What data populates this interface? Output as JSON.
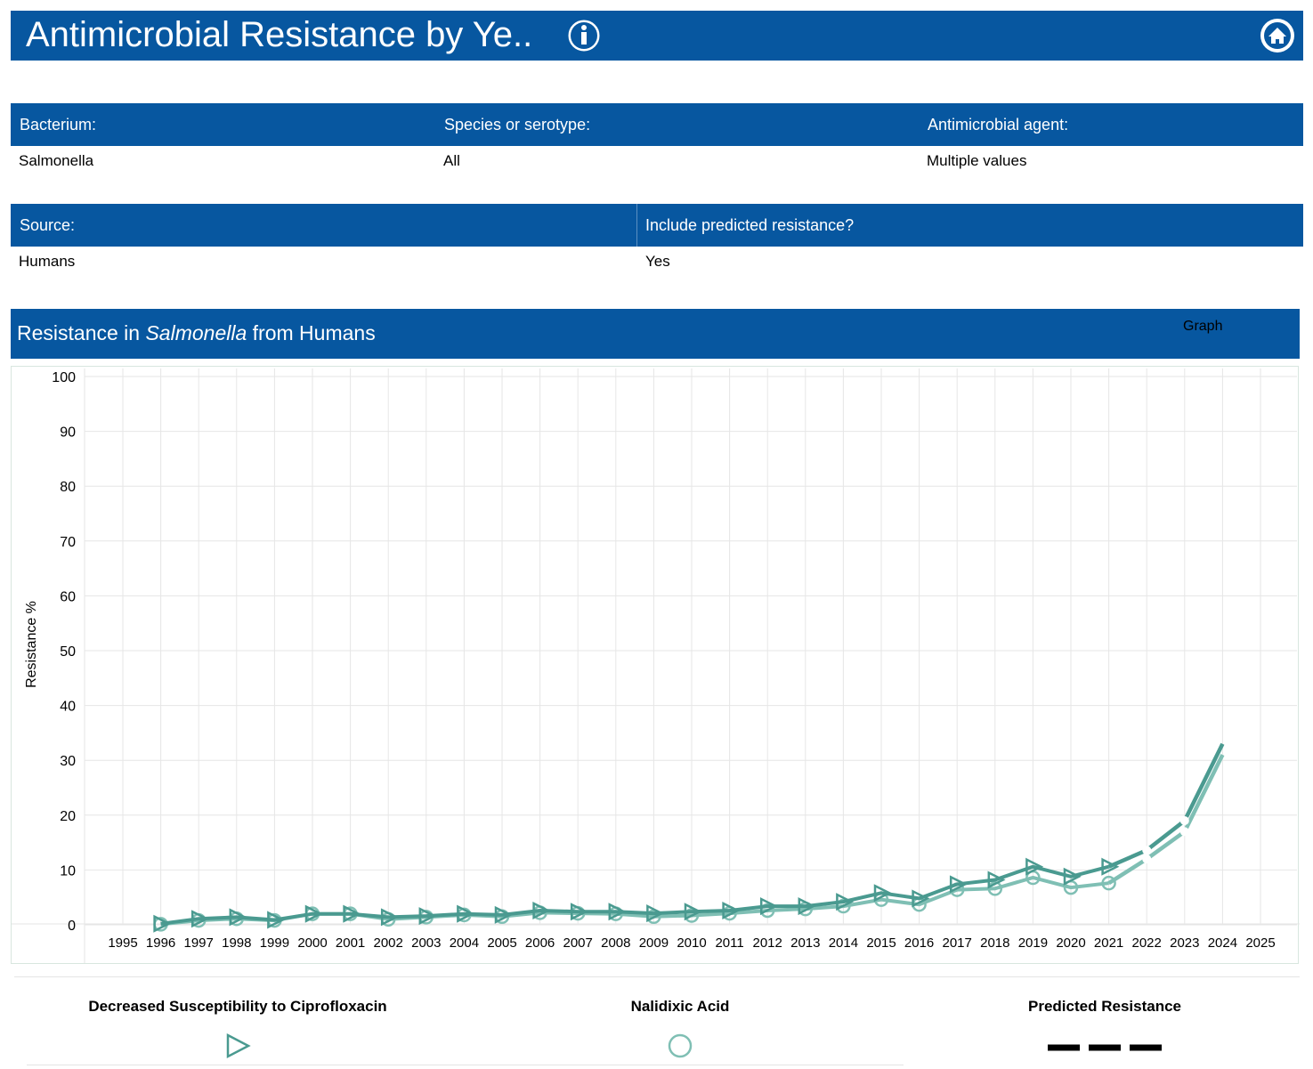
{
  "header": {
    "title": "Antimicrobial Resistance by Ye..",
    "info_icon": "info-icon",
    "home_icon": "home-icon",
    "bar_color": "#0757a0"
  },
  "filters": {
    "bacterium": {
      "label": "Bacterium:",
      "value": "Salmonella"
    },
    "species": {
      "label": "Species or serotype:",
      "value": "All"
    },
    "agent": {
      "label": "Antimicrobial agent:",
      "value": "Multiple values"
    },
    "source": {
      "label": "Source:",
      "value": "Humans"
    },
    "predicted": {
      "label": "Include predicted resistance?",
      "value": "Yes"
    }
  },
  "chart_panel": {
    "title_prefix": "Resistance in ",
    "title_italic": "Salmonella",
    "title_suffix": " from Humans",
    "graph_button": "Graph"
  },
  "legend": {
    "cipro": "Decreased Susceptibility to Ciprofloxacin",
    "nalidixic": "Nalidixic Acid",
    "predicted": "Predicted Resistance"
  },
  "chart_data": {
    "type": "line",
    "ylabel": "Resistance %",
    "xlabel": "",
    "ylim": [
      0,
      100
    ],
    "y_ticks": [
      0,
      10,
      20,
      30,
      40,
      50,
      60,
      70,
      80,
      90,
      100
    ],
    "x_ticks": [
      1995,
      1996,
      1997,
      1998,
      1999,
      2000,
      2001,
      2002,
      2003,
      2004,
      2005,
      2006,
      2007,
      2008,
      2009,
      2010,
      2011,
      2012,
      2013,
      2014,
      2015,
      2016,
      2017,
      2018,
      2019,
      2020,
      2021,
      2022,
      2023,
      2024,
      2025
    ],
    "grid": true,
    "series": [
      {
        "name": "Decreased Susceptibility to Ciprofloxacin",
        "color": "#4a9a90",
        "marker": "triangle",
        "x": [
          1996,
          1997,
          1998,
          1999,
          2000,
          2001,
          2002,
          2003,
          2004,
          2005,
          2006,
          2007,
          2008,
          2009,
          2010,
          2011,
          2012,
          2013,
          2014,
          2015,
          2016,
          2017,
          2018,
          2019,
          2020,
          2021
        ],
        "values": [
          0.2,
          1.1,
          1.4,
          0.9,
          2.0,
          2.0,
          1.4,
          1.6,
          2.0,
          1.8,
          2.6,
          2.4,
          2.4,
          2.1,
          2.4,
          2.6,
          3.4,
          3.4,
          4.2,
          5.8,
          4.8,
          7.4,
          8.2,
          10.6,
          8.8,
          10.6
        ]
      },
      {
        "name": "Nalidixic Acid",
        "color": "#7fbfb4",
        "marker": "circle",
        "x": [
          1996,
          1997,
          1998,
          1999,
          2000,
          2001,
          2002,
          2003,
          2004,
          2005,
          2006,
          2007,
          2008,
          2009,
          2010,
          2011,
          2012,
          2013,
          2014,
          2015,
          2016,
          2017,
          2018,
          2019,
          2020,
          2021
        ],
        "values": [
          0.1,
          0.8,
          1.1,
          0.8,
          2.0,
          2.0,
          1.0,
          1.4,
          1.8,
          1.5,
          2.2,
          2.1,
          2.0,
          1.5,
          1.7,
          2.1,
          2.6,
          2.9,
          3.4,
          4.6,
          3.7,
          6.4,
          6.6,
          8.6,
          6.8,
          7.6
        ]
      },
      {
        "name": "Predicted Resistance",
        "color": "#4a9a90",
        "marker": "none",
        "x": [
          2021,
          2022,
          2023,
          2024
        ],
        "values": [
          10.6,
          13.6,
          19.0,
          33.0
        ]
      },
      {
        "name": "Predicted Resistance",
        "color": "#7fbfb4",
        "marker": "none",
        "x": [
          2021,
          2022,
          2023,
          2024
        ],
        "values": [
          7.6,
          12.0,
          17.0,
          31.0
        ]
      }
    ]
  }
}
